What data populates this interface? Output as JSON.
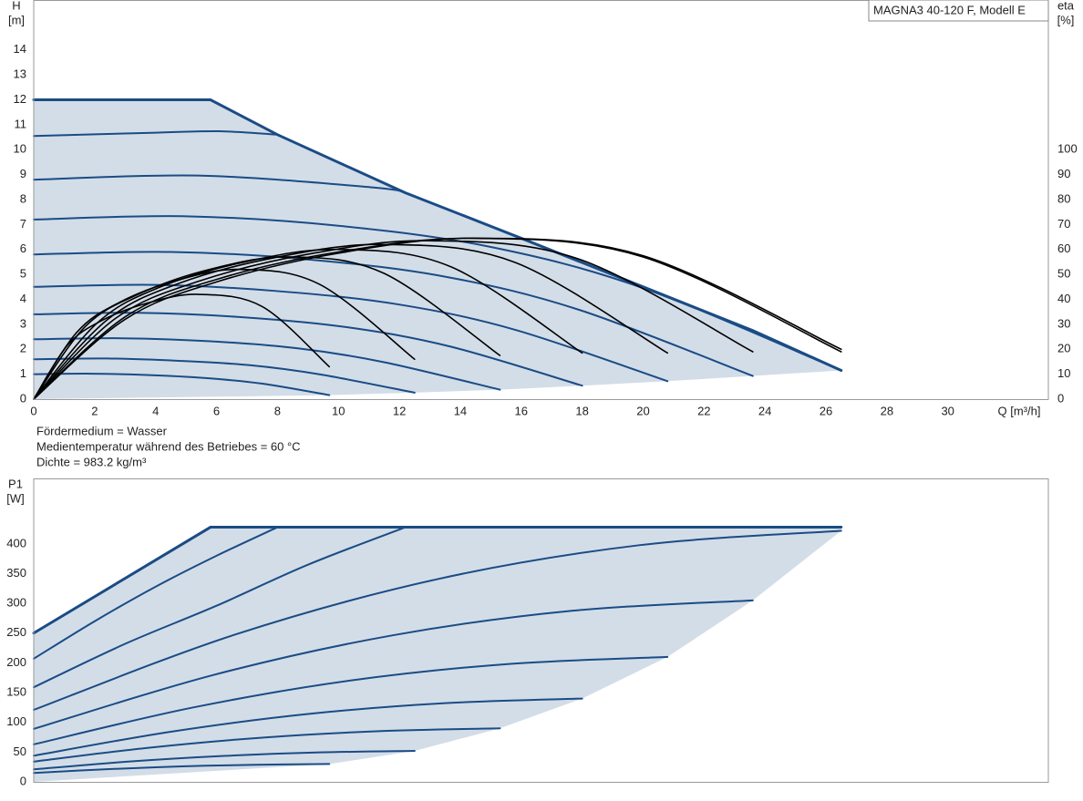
{
  "chart_data": [
    {
      "type": "line",
      "title": "MAGNA3 40-120 F, Modell E",
      "ylabel": [
        "H",
        "[m]"
      ],
      "y2label": [
        "eta",
        "[%]"
      ],
      "xlabel": "Q [m³/h]",
      "notes": [
        "Fördermedium = Wasser",
        "Medientemperatur während des Betriebes = 60 °C",
        "Dichte = 983.2 kg/m³"
      ],
      "xlim": [
        0,
        33.3
      ],
      "xticks": [
        0,
        2,
        4,
        6,
        8,
        10,
        12,
        14,
        16,
        18,
        20,
        22,
        24,
        26,
        28,
        30
      ],
      "ylim": [
        0,
        16
      ],
      "yticks": [
        0,
        1,
        2,
        3,
        4,
        5,
        6,
        7,
        8,
        9,
        10,
        11,
        12,
        13,
        14
      ],
      "y2lim": [
        0,
        160
      ],
      "y2ticks": [
        0,
        10,
        20,
        30,
        40,
        50,
        60,
        70,
        80,
        90,
        100
      ],
      "grid": true,
      "fill_color": "#d3dde8",
      "series": [
        {
          "color": "#1a4c85",
          "curve": "linear",
          "x": [
            0,
            5.8,
            8,
            12.2,
            16,
            20,
            23.6,
            26.5
          ],
          "values": [
            12,
            12,
            10.6,
            8.27,
            6.45,
            4.5,
            2.75,
            1.15
          ]
        },
        {
          "color": "#1a4c85",
          "x": [
            0,
            4,
            6.1,
            8
          ],
          "values": [
            10.55,
            10.68,
            10.74,
            10.6
          ]
        },
        {
          "color": "#1a4c85",
          "x": [
            0,
            5.5,
            11.1,
            12.2
          ],
          "values": [
            8.8,
            8.96,
            8.49,
            8.27
          ]
        },
        {
          "color": "#1a4c85",
          "x": [
            0,
            5,
            10,
            15,
            20,
            26.5
          ],
          "values": [
            7.2,
            7.33,
            6.95,
            6.1,
            4.45,
            1.15
          ]
        },
        {
          "color": "#1a4c85",
          "x": [
            0,
            4.5,
            9,
            13.5,
            17.9,
            23.6
          ],
          "values": [
            5.8,
            5.9,
            5.6,
            4.91,
            3.58,
            0.93
          ]
        },
        {
          "color": "#1a4c85",
          "x": [
            0,
            4,
            7.9,
            11.9,
            15.8,
            20.8
          ],
          "values": [
            4.5,
            4.58,
            4.34,
            3.81,
            2.78,
            0.72
          ]
        },
        {
          "color": "#1a4c85",
          "x": [
            0,
            3.4,
            6.9,
            10.3,
            13.7,
            18
          ],
          "values": [
            3.4,
            3.46,
            3.28,
            2.88,
            2.1,
            0.54
          ]
        },
        {
          "color": "#1a4c85",
          "x": [
            0,
            2.9,
            5.8,
            8.7,
            11.5,
            15.3
          ],
          "values": [
            2.4,
            2.44,
            2.32,
            2.03,
            1.48,
            0.38
          ]
        },
        {
          "color": "#1a4c85",
          "x": [
            0,
            2.4,
            4.7,
            7.1,
            9.4,
            12.5
          ],
          "values": [
            1.6,
            1.63,
            1.54,
            1.36,
            0.99,
            0.26
          ]
        },
        {
          "color": "#1a4c85",
          "x": [
            0,
            1.9,
            3.7,
            5.6,
            7.5,
            9.7
          ],
          "values": [
            1.0,
            1.02,
            0.97,
            0.85,
            0.62,
            0.16
          ]
        },
        {
          "color": "#000000",
          "axis": "y2",
          "x": [
            0,
            1.1,
            2.2,
            3.7,
            5.4,
            7.5,
            9.7
          ],
          "values": [
            0,
            21.5,
            31.3,
            38.4,
            42,
            37.1,
            13
          ]
        },
        {
          "color": "#000000",
          "axis": "y2",
          "x": [
            0,
            1.4,
            2.8,
            4.7,
            6.8,
            9.4,
            12.5
          ],
          "values": [
            0,
            26.6,
            38.7,
            47.6,
            52,
            45.9,
            16
          ]
        },
        {
          "color": "#000000",
          "axis": "y2",
          "x": [
            0,
            1.7,
            3.5,
            5.8,
            8.4,
            11.5,
            15.3
          ],
          "values": [
            0,
            29.2,
            42.4,
            52.1,
            57,
            50.4,
            17.5
          ]
        },
        {
          "color": "#000000",
          "axis": "y2",
          "x": [
            0,
            2.1,
            4.1,
            6.9,
            10,
            13.7,
            18
          ],
          "values": [
            0,
            30.7,
            44.7,
            54.9,
            60,
            53,
            18.5
          ]
        },
        {
          "color": "#000000",
          "axis": "y2",
          "x": [
            0,
            2.4,
            4.7,
            7.9,
            11.5,
            15.8,
            20.8
          ],
          "values": [
            0,
            31.7,
            46.1,
            56.7,
            62,
            54.8,
            18.5
          ]
        },
        {
          "color": "#000000",
          "axis": "y2",
          "x": [
            0,
            2.7,
            5.4,
            9,
            13,
            17.9,
            23.6
          ],
          "values": [
            0,
            32.5,
            47.2,
            58.1,
            63.5,
            56.1,
            19
          ]
        },
        {
          "color": "#000000",
          "axis": "y2",
          "x": [
            0,
            3,
            6,
            10,
            14.5,
            20,
            26.5
          ],
          "values": [
            0,
            33,
            48,
            59,
            64.5,
            57,
            19
          ]
        },
        {
          "color": "#000000",
          "axis": "y2",
          "x": [
            0,
            3,
            6,
            10,
            14.5,
            20,
            26.5
          ],
          "values": [
            0,
            32,
            47,
            58.5,
            64.5,
            57.5,
            20
          ]
        }
      ]
    },
    {
      "type": "line",
      "ylabel": [
        "P1",
        "[W]"
      ],
      "xlim": [
        0,
        33.3
      ],
      "ylim": [
        0,
        510
      ],
      "yticks": [
        0,
        50,
        100,
        150,
        200,
        250,
        300,
        350,
        400
      ],
      "grid": true,
      "fill_color": "#d3dde8",
      "series": [
        {
          "color": "#1a4c85",
          "curve": "linear",
          "x": [
            0,
            5.8,
            26.5
          ],
          "values": [
            250,
            428,
            428
          ]
        },
        {
          "color": "#1a4c85",
          "x": [
            0,
            2,
            4,
            6,
            8
          ],
          "values": [
            207,
            270,
            328,
            380,
            428
          ]
        },
        {
          "color": "#1a4c85",
          "x": [
            0,
            3,
            6,
            9,
            12.2
          ],
          "values": [
            159,
            232,
            296,
            365,
            428
          ]
        },
        {
          "color": "#1a4c85",
          "x": [
            0,
            6.6,
            13.25,
            19.9,
            26.5
          ],
          "values": [
            121,
            247.4,
            340.7,
            397.9,
            422
          ]
        },
        {
          "color": "#1a4c85",
          "x": [
            0,
            5.9,
            11.8,
            17.7,
            23.6
          ],
          "values": [
            89,
            179.7,
            246.5,
            287.7,
            305
          ]
        },
        {
          "color": "#1a4c85",
          "x": [
            0,
            5.2,
            10.4,
            15.6,
            20.8
          ],
          "values": [
            63,
            124.7,
            170.3,
            198.2,
            210
          ]
        },
        {
          "color": "#1a4c85",
          "x": [
            0,
            4.5,
            9,
            13.5,
            18
          ],
          "values": [
            44,
            84.3,
            114.1,
            132.3,
            140
          ]
        },
        {
          "color": "#1a4c85",
          "x": [
            0,
            3.8,
            7.65,
            11.5,
            15.3
          ],
          "values": [
            34,
            57.5,
            74.9,
            85.5,
            90
          ]
        },
        {
          "color": "#1a4c85",
          "x": [
            0,
            3.1,
            6.25,
            9.4,
            12.5
          ],
          "values": [
            21,
            34,
            43.6,
            49.5,
            52
          ]
        },
        {
          "color": "#1a4c85",
          "x": [
            0,
            2.4,
            4.85,
            7.3,
            9.7
          ],
          "values": [
            15,
            21.3,
            26,
            28.8,
            30
          ]
        }
      ]
    }
  ]
}
